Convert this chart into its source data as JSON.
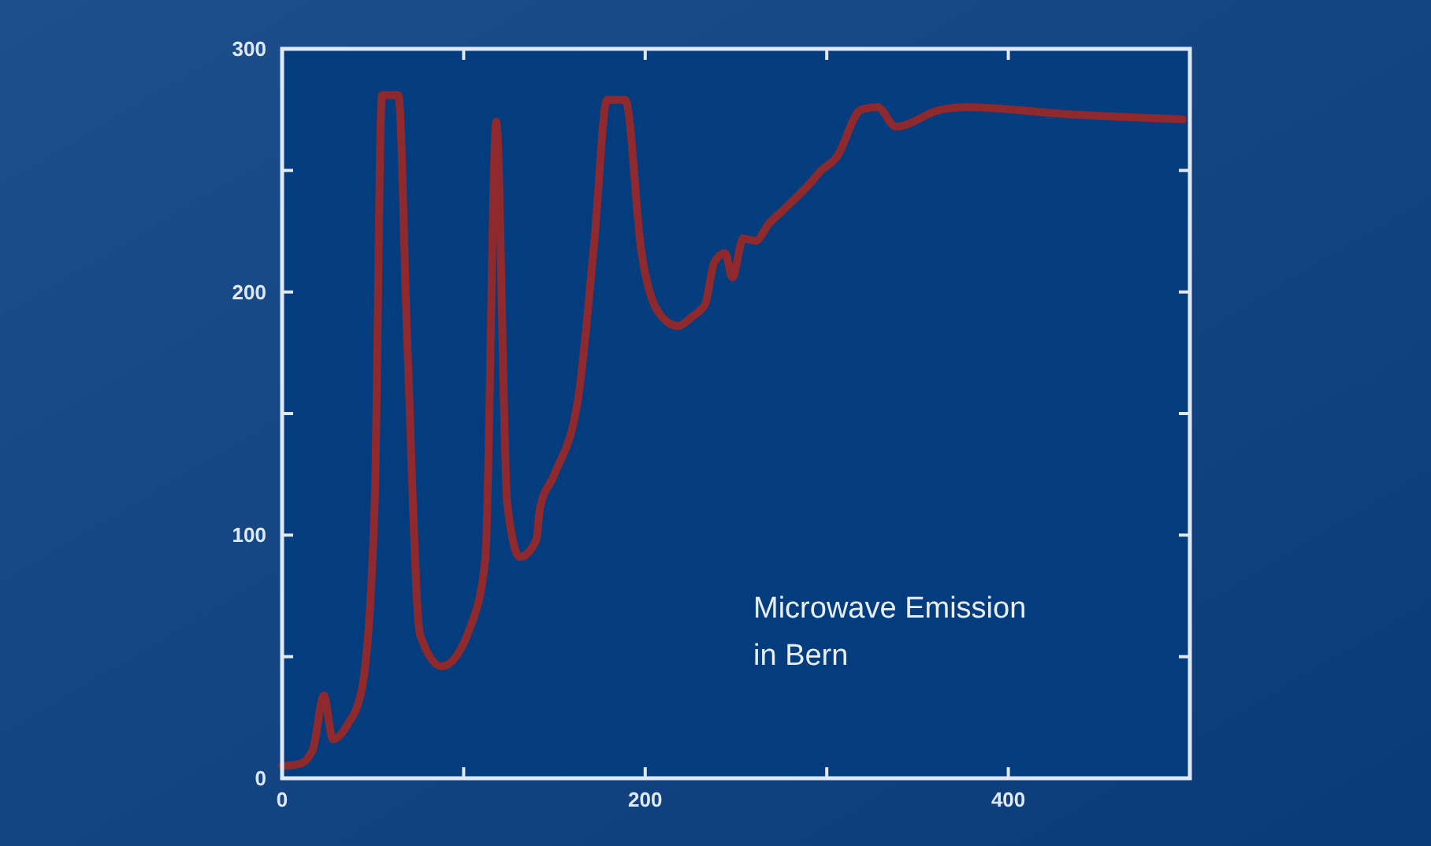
{
  "chart_data": {
    "type": "line",
    "x": [
      0,
      10,
      17,
      23,
      28,
      36,
      44,
      51,
      55,
      64,
      69,
      76,
      88,
      105,
      112,
      118,
      124,
      131,
      140,
      142,
      150,
      163,
      172,
      179,
      189,
      198,
      207,
      218,
      226,
      233,
      238,
      244,
      248,
      254,
      261,
      268,
      275,
      282,
      290,
      297,
      305,
      319,
      328,
      338,
      363,
      377,
      435,
      496
    ],
    "series": [
      {
        "color": "#8e2a2e",
        "values": [
          5,
          6,
          12,
          34,
          16,
          22,
          37,
          113,
          281,
          281,
          178,
          59,
          46,
          65,
          91,
          270,
          113,
          91,
          98,
          111,
          125,
          156,
          221,
          279,
          279,
          216,
          192,
          186,
          190,
          195,
          212,
          216,
          206,
          222,
          221,
          228,
          233,
          238,
          244,
          250,
          255,
          275,
          276,
          268,
          275,
          276,
          273,
          271
        ]
      }
    ],
    "xlim": [
      0,
      500
    ],
    "ylim": [
      0,
      300
    ],
    "xticks": [
      0,
      {
        "value": 100,
        "label": null
      },
      200,
      {
        "value": 300,
        "label": null
      },
      400,
      {
        "value": 500,
        "label": null
      }
    ],
    "yticks": [
      0,
      {
        "value": 50,
        "label": null
      },
      100,
      {
        "value": 150,
        "label": null
      },
      200,
      {
        "value": 250,
        "label": null
      },
      300
    ],
    "grid": false,
    "marker": "none",
    "line_style": "solid",
    "annotations": [
      "Microwave Emission\nin Bern"
    ]
  }
}
